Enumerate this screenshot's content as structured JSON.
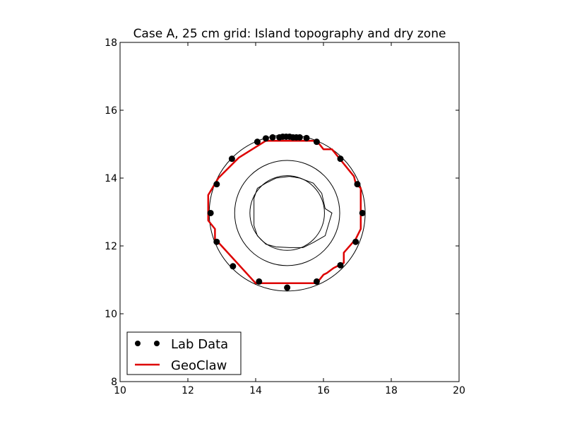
{
  "chart_data": {
    "type": "scatter",
    "title": "Case A, 25 cm grid:  Island topography and dry zone",
    "xlabel": "",
    "ylabel": "",
    "xlim": [
      10,
      20
    ],
    "ylim": [
      8,
      18
    ],
    "xticks": [
      "10",
      "12",
      "14",
      "16",
      "18",
      "20"
    ],
    "yticks": [
      "8",
      "10",
      "12",
      "14",
      "16",
      "18"
    ],
    "grid": false,
    "legend_position": "lower-left",
    "contours": [
      {
        "center": [
          14.93,
          12.97
        ],
        "radius": 2.3
      },
      {
        "center": [
          14.93,
          12.97
        ],
        "radius": 1.55
      },
      {
        "center": [
          14.93,
          12.97
        ],
        "radius": 1.1
      },
      {
        "closed": true,
        "points": [
          [
            15.0,
            14.05
          ],
          [
            15.3,
            14.0
          ],
          [
            15.7,
            13.85
          ],
          [
            15.95,
            13.55
          ],
          [
            16.05,
            13.1
          ],
          [
            16.25,
            12.97
          ],
          [
            16.05,
            12.3
          ],
          [
            15.7,
            12.1
          ],
          [
            15.4,
            11.95
          ],
          [
            15.0,
            11.95
          ],
          [
            14.6,
            11.97
          ],
          [
            14.3,
            12.05
          ],
          [
            14.05,
            12.3
          ],
          [
            13.95,
            12.6
          ],
          [
            13.95,
            13.0
          ],
          [
            13.95,
            13.4
          ],
          [
            14.05,
            13.7
          ],
          [
            14.3,
            13.85
          ],
          [
            14.6,
            14.0
          ]
        ]
      }
    ],
    "series": [
      {
        "name": "Lab Data",
        "style": "markers",
        "color": "#000000",
        "points": [
          [
            14.05,
            15.07
          ],
          [
            14.3,
            15.17
          ],
          [
            14.5,
            15.2
          ],
          [
            14.7,
            15.2
          ],
          [
            14.8,
            15.22
          ],
          [
            14.9,
            15.22
          ],
          [
            15.0,
            15.22
          ],
          [
            15.1,
            15.2
          ],
          [
            15.2,
            15.2
          ],
          [
            15.3,
            15.2
          ],
          [
            15.5,
            15.18
          ],
          [
            15.8,
            15.07
          ],
          [
            16.5,
            14.57
          ],
          [
            17.0,
            13.82
          ],
          [
            17.15,
            12.97
          ],
          [
            16.95,
            12.12
          ],
          [
            16.5,
            11.43
          ],
          [
            15.8,
            10.95
          ],
          [
            14.93,
            10.77
          ],
          [
            14.1,
            10.95
          ],
          [
            13.33,
            11.4
          ],
          [
            12.85,
            12.12
          ],
          [
            12.67,
            12.97
          ],
          [
            12.85,
            13.82
          ],
          [
            13.3,
            14.57
          ]
        ]
      },
      {
        "name": "GeoClaw",
        "style": "line",
        "color": "#dd0000",
        "points": [
          [
            14.3,
            15.1
          ],
          [
            15.8,
            15.1
          ],
          [
            16.0,
            14.85
          ],
          [
            16.25,
            14.85
          ],
          [
            16.9,
            14.05
          ],
          [
            16.95,
            13.85
          ],
          [
            17.1,
            13.7
          ],
          [
            17.1,
            12.5
          ],
          [
            16.95,
            12.2
          ],
          [
            16.6,
            11.8
          ],
          [
            16.6,
            11.5
          ],
          [
            16.3,
            11.35
          ],
          [
            16.1,
            11.2
          ],
          [
            16.0,
            11.15
          ],
          [
            15.8,
            10.9
          ],
          [
            14.0,
            10.9
          ],
          [
            12.95,
            12.05
          ],
          [
            12.8,
            12.2
          ],
          [
            12.8,
            12.5
          ],
          [
            12.6,
            12.75
          ],
          [
            12.6,
            13.5
          ],
          [
            12.9,
            14.0
          ],
          [
            13.5,
            14.6
          ],
          [
            14.3,
            15.1
          ]
        ]
      }
    ]
  }
}
